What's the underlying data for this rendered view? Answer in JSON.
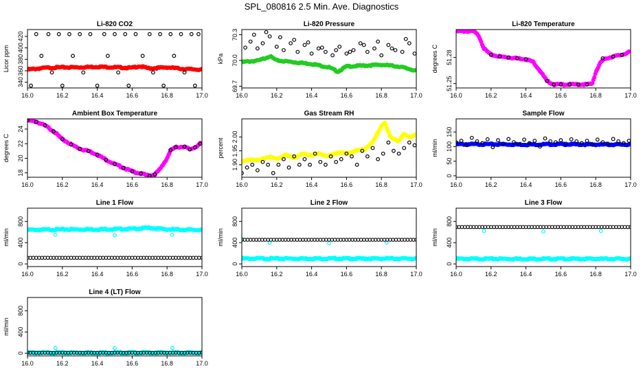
{
  "figure": {
    "title": "SPL_080816  2.5 Min. Ave. Diagnostics"
  },
  "colors": {
    "red": "#ff0000",
    "green": "#22cc22",
    "magenta": "#ff00ff",
    "yellow": "#ffff00",
    "blue": "#0000ff",
    "cyan": "#00ffff",
    "black": "#000000"
  },
  "chart_data": [
    {
      "type": "scatter",
      "title": "Li-820 CO2",
      "xlabel": "",
      "ylabel": "Licor ppm",
      "xlim": [
        16.0,
        17.0
      ],
      "ylim": [
        330,
        432
      ],
      "x_ticks": [
        "16.0",
        "16.2",
        "16.4",
        "16.6",
        "16.8",
        "17.0"
      ],
      "y_ticks": [
        "340",
        "360",
        "380",
        "400",
        "420"
      ],
      "series": [
        {
          "color": "red",
          "style": "dense",
          "x": [
            16.0,
            16.1,
            16.2,
            16.3,
            16.4,
            16.5,
            16.6,
            16.64,
            16.7,
            16.8,
            16.9,
            17.0
          ],
          "y": [
            362,
            365,
            366,
            366,
            367,
            366,
            365,
            368,
            364,
            366,
            363,
            362
          ]
        },
        {
          "color": "black",
          "style": "open",
          "x": [
            16.02,
            16.08,
            16.14,
            16.2,
            16.26,
            16.32,
            16.4,
            16.46,
            16.52,
            16.58,
            16.66,
            16.72,
            16.78,
            16.84,
            16.9,
            16.96,
            16.05,
            16.12,
            16.18,
            16.24,
            16.3,
            16.36,
            16.44,
            16.5,
            16.56,
            16.62,
            16.7,
            16.76,
            16.82,
            16.88,
            16.94,
            16.98
          ],
          "y": [
            334,
            386,
            357,
            334,
            386,
            357,
            334,
            386,
            357,
            334,
            386,
            357,
            334,
            386,
            357,
            334,
            424,
            424,
            424,
            424,
            424,
            424,
            424,
            424,
            424,
            424,
            424,
            424,
            424,
            424,
            424,
            424
          ]
        }
      ]
    },
    {
      "type": "scatter",
      "title": "Li-820 Pressure",
      "xlabel": "",
      "ylabel": "kPa",
      "xlim": [
        16.0,
        17.0
      ],
      "ylim": [
        69.68,
        70.36
      ],
      "x_ticks": [
        "16.0",
        "16.2",
        "16.4",
        "16.6",
        "16.8",
        "17.0"
      ],
      "y_ticks": [
        "69.7",
        "70.0",
        "70.3"
      ],
      "series": [
        {
          "color": "green",
          "style": "dense",
          "x": [
            16.0,
            16.1,
            16.16,
            16.2,
            16.3,
            16.4,
            16.5,
            16.55,
            16.6,
            16.7,
            16.8,
            16.9,
            17.0
          ],
          "y": [
            69.98,
            70.0,
            70.05,
            70.0,
            69.98,
            69.96,
            69.92,
            69.87,
            69.93,
            69.94,
            69.95,
            69.93,
            69.88
          ]
        },
        {
          "color": "black",
          "style": "open",
          "x": [
            16.02,
            16.05,
            16.09,
            16.12,
            16.16,
            16.2,
            16.24,
            16.28,
            16.32,
            16.36,
            16.4,
            16.44,
            16.48,
            16.52,
            16.56,
            16.6,
            16.64,
            16.68,
            16.72,
            16.76,
            16.8,
            16.84,
            16.88,
            16.92,
            16.96,
            16.99,
            16.07,
            16.14,
            16.22,
            16.3,
            16.38,
            16.46,
            16.54,
            16.62,
            16.7,
            16.78,
            16.86,
            16.94
          ],
          "y": [
            70.15,
            70.22,
            70.14,
            70.2,
            70.28,
            70.16,
            70.12,
            70.2,
            70.1,
            70.18,
            70.08,
            70.14,
            70.1,
            70.06,
            70.16,
            70.08,
            70.12,
            70.2,
            70.1,
            70.14,
            70.06,
            70.18,
            70.12,
            70.1,
            70.2,
            70.08,
            70.3,
            70.33,
            70.27,
            70.24,
            70.21,
            70.15,
            70.12,
            70.1,
            70.18,
            70.22,
            70.14,
            70.25
          ]
        }
      ]
    },
    {
      "type": "line",
      "title": "Li-820 Temperature",
      "xlabel": "",
      "ylabel": "degrees C",
      "xlim": [
        16.0,
        17.0
      ],
      "ylim": [
        51.245,
        51.312
      ],
      "x_ticks": [
        "16.0",
        "16.2",
        "16.4",
        "16.6",
        "16.8",
        "17.0"
      ],
      "y_ticks": [
        "51.25",
        "51.28"
      ],
      "series": [
        {
          "color": "magenta",
          "style": "dense",
          "x": [
            16.0,
            16.05,
            16.1,
            16.13,
            16.16,
            16.2,
            16.25,
            16.3,
            16.35,
            16.4,
            16.44,
            16.48,
            16.52,
            16.56,
            16.6,
            16.65,
            16.7,
            16.75,
            16.78,
            16.8,
            16.83,
            16.86,
            16.9,
            16.95,
            16.99
          ],
          "y": [
            51.31,
            51.31,
            51.31,
            51.305,
            51.29,
            51.283,
            51.281,
            51.28,
            51.279,
            51.278,
            51.275,
            51.265,
            51.253,
            51.249,
            51.249,
            51.249,
            51.249,
            51.249,
            51.25,
            51.263,
            51.275,
            51.279,
            51.281,
            51.283,
            51.286
          ]
        },
        {
          "color": "black",
          "style": "open",
          "x": [
            16.2,
            16.25,
            16.3,
            16.35,
            16.4,
            16.52,
            16.56,
            16.6,
            16.65,
            16.7,
            16.75,
            16.84,
            16.9,
            16.95
          ],
          "y": [
            51.283,
            51.281,
            51.28,
            51.279,
            51.278,
            51.253,
            51.249,
            51.249,
            51.249,
            51.249,
            51.249,
            51.279,
            51.281,
            51.283
          ]
        }
      ]
    },
    {
      "type": "line",
      "title": "Ambient Box Temperature",
      "xlabel": "",
      "ylabel": "degrees C",
      "xlim": [
        16.0,
        17.0
      ],
      "ylim": [
        17.4,
        25.4
      ],
      "x_ticks": [
        "16.0",
        "16.2",
        "16.4",
        "16.6",
        "16.8",
        "17.0"
      ],
      "y_ticks": [
        "18",
        "20",
        "22",
        "24"
      ],
      "series": [
        {
          "color": "magenta",
          "style": "dense",
          "x": [
            16.0,
            16.05,
            16.1,
            16.15,
            16.2,
            16.25,
            16.3,
            16.35,
            16.4,
            16.45,
            16.5,
            16.55,
            16.6,
            16.65,
            16.7,
            16.73,
            16.76,
            16.8,
            16.82,
            16.85,
            16.9,
            16.93,
            16.96,
            16.99
          ],
          "y": [
            25.2,
            25.0,
            24.5,
            23.7,
            22.6,
            21.9,
            21.3,
            21.0,
            20.5,
            19.8,
            19.2,
            18.7,
            18.2,
            17.9,
            17.6,
            17.8,
            18.5,
            20.0,
            21.1,
            21.5,
            21.6,
            21.2,
            21.5,
            22.0
          ]
        },
        {
          "color": "black",
          "style": "open",
          "x": [
            16.0,
            16.05,
            16.1,
            16.15,
            16.2,
            16.25,
            16.3,
            16.35,
            16.4,
            16.45,
            16.5,
            16.55,
            16.6,
            16.65,
            16.7,
            16.73,
            16.82,
            16.85,
            16.9,
            16.93,
            16.96,
            16.99
          ],
          "y": [
            25.2,
            25.0,
            24.5,
            23.7,
            22.6,
            21.9,
            21.3,
            21.0,
            20.5,
            19.8,
            19.2,
            18.7,
            18.2,
            17.9,
            17.6,
            17.8,
            21.1,
            21.5,
            21.6,
            21.2,
            21.5,
            22.0
          ]
        }
      ]
    },
    {
      "type": "scatter",
      "title": "Gas Stream RH",
      "xlabel": "",
      "ylabel": "percent",
      "xlim": [
        16.0,
        17.0
      ],
      "ylim": [
        1.855,
        2.065
      ],
      "x_ticks": [
        "16.0",
        "16.2",
        "16.4",
        "16.6",
        "16.8",
        "17.0"
      ],
      "y_ticks": [
        "1.90",
        "1.95",
        "2.00"
      ],
      "series": [
        {
          "color": "yellow",
          "style": "dense",
          "x": [
            16.0,
            16.05,
            16.1,
            16.15,
            16.2,
            16.25,
            16.3,
            16.35,
            16.4,
            16.45,
            16.5,
            16.55,
            16.6,
            16.65,
            16.7,
            16.75,
            16.8,
            16.82,
            16.85,
            16.9,
            16.93,
            16.96,
            16.99
          ],
          "y": [
            1.91,
            1.92,
            1.915,
            1.93,
            1.92,
            1.935,
            1.925,
            1.94,
            1.935,
            1.94,
            1.93,
            1.945,
            1.94,
            1.95,
            1.955,
            1.98,
            2.04,
            2.05,
            2.0,
            1.985,
            2.01,
            2.0,
            2.005
          ]
        },
        {
          "color": "black",
          "style": "open",
          "x": [
            16.0,
            16.03,
            16.06,
            16.09,
            16.12,
            16.15,
            16.18,
            16.21,
            16.24,
            16.27,
            16.3,
            16.33,
            16.36,
            16.39,
            16.42,
            16.45,
            16.48,
            16.51,
            16.54,
            16.57,
            16.6,
            16.63,
            16.66,
            16.69,
            16.72,
            16.75,
            16.78,
            16.81,
            16.84,
            16.87,
            16.9,
            16.93,
            16.96,
            16.99
          ],
          "y": [
            1.87,
            1.89,
            1.9,
            1.88,
            1.91,
            1.9,
            1.87,
            1.9,
            1.92,
            1.89,
            1.93,
            1.9,
            1.92,
            1.9,
            1.94,
            1.91,
            1.9,
            1.93,
            1.91,
            1.92,
            1.94,
            1.93,
            1.9,
            1.95,
            1.93,
            1.96,
            1.92,
            1.94,
            1.98,
            1.95,
            1.94,
            1.96,
            1.98,
            1.97
          ]
        }
      ]
    },
    {
      "type": "scatter",
      "title": "Sample Flow",
      "xlabel": "",
      "ylabel": "ml/min",
      "xlim": [
        16.0,
        17.0
      ],
      "ylim": [
        -5,
        195
      ],
      "x_ticks": [
        "16.0",
        "16.2",
        "16.4",
        "16.6",
        "16.8",
        "17.0"
      ],
      "y_ticks": [
        "0",
        "50",
        "100",
        "150"
      ],
      "series": [
        {
          "color": "blue",
          "style": "dense",
          "x": [
            16.0,
            16.2,
            16.4,
            16.6,
            16.8,
            17.0
          ],
          "y": [
            108,
            108,
            107,
            108,
            107,
            107
          ]
        },
        {
          "color": "black",
          "style": "open",
          "x": [
            16.0,
            16.03,
            16.06,
            16.09,
            16.12,
            16.15,
            16.18,
            16.21,
            16.24,
            16.27,
            16.3,
            16.33,
            16.36,
            16.39,
            16.42,
            16.45,
            16.48,
            16.51,
            16.54,
            16.57,
            16.6,
            16.63,
            16.66,
            16.69,
            16.72,
            16.75,
            16.78,
            16.81,
            16.84,
            16.87,
            16.9,
            16.93,
            16.96,
            16.99
          ],
          "y": [
            115,
            120,
            105,
            130,
            118,
            112,
            125,
            98,
            122,
            110,
            126,
            115,
            108,
            124,
            112,
            120,
            100,
            128,
            118,
            115,
            122,
            110,
            125,
            118,
            112,
            120,
            108,
            124,
            115,
            110,
            126,
            118,
            112,
            120
          ]
        }
      ]
    },
    {
      "type": "scatter",
      "title": "Line 1 Flow",
      "xlabel": "",
      "ylabel": "ml/min",
      "xlim": [
        16.0,
        17.0
      ],
      "ylim": [
        -50,
        1050
      ],
      "x_ticks": [
        "16.0",
        "16.2",
        "16.4",
        "16.6",
        "16.8",
        "17.0"
      ],
      "y_ticks": [
        "0",
        "400",
        "800"
      ],
      "series": [
        {
          "color": "cyan",
          "style": "dense",
          "x": [
            16.0,
            16.2,
            16.4,
            16.6,
            16.7,
            16.8,
            17.0
          ],
          "y": [
            640,
            650,
            650,
            660,
            680,
            650,
            640
          ]
        },
        {
          "color": "cyan",
          "style": "open",
          "x": [
            16.16,
            16.5,
            16.83
          ],
          "y": [
            550,
            540,
            550
          ]
        },
        {
          "color": "black",
          "style": "dense-open",
          "x": [
            16.0,
            17.0
          ],
          "y": [
            115,
            115
          ]
        }
      ]
    },
    {
      "type": "scatter",
      "title": "Line 2 Flow",
      "xlabel": "",
      "ylabel": "ml/min",
      "xlim": [
        16.0,
        17.0
      ],
      "ylim": [
        -50,
        1050
      ],
      "x_ticks": [
        "16.0",
        "16.2",
        "16.4",
        "16.6",
        "16.8",
        "17.0"
      ],
      "y_ticks": [
        "0",
        "400",
        "800"
      ],
      "series": [
        {
          "color": "cyan",
          "style": "dense",
          "x": [
            16.0,
            17.0
          ],
          "y": [
            100,
            100
          ]
        },
        {
          "color": "cyan",
          "style": "open",
          "x": [
            16.0,
            16.16,
            16.5,
            16.83
          ],
          "y": [
            470,
            400,
            390,
            400
          ]
        },
        {
          "color": "black",
          "style": "dense-open",
          "x": [
            16.0,
            17.0
          ],
          "y": [
            455,
            455
          ]
        }
      ]
    },
    {
      "type": "scatter",
      "title": "Line 3 Flow",
      "xlabel": "",
      "ylabel": "ml/min",
      "xlim": [
        16.0,
        17.0
      ],
      "ylim": [
        -50,
        1050
      ],
      "x_ticks": [
        "16.0",
        "16.2",
        "16.4",
        "16.6",
        "16.8",
        "17.0"
      ],
      "y_ticks": [
        "0",
        "400",
        "800"
      ],
      "series": [
        {
          "color": "cyan",
          "style": "dense",
          "x": [
            16.0,
            17.0
          ],
          "y": [
            95,
            95
          ]
        },
        {
          "color": "cyan",
          "style": "open",
          "x": [
            16.0,
            16.16,
            16.5,
            16.83
          ],
          "y": [
            690,
            620,
            610,
            620
          ]
        },
        {
          "color": "black",
          "style": "dense-open",
          "x": [
            16.0,
            17.0
          ],
          "y": [
            695,
            695
          ]
        }
      ]
    },
    {
      "type": "scatter",
      "title": "Line 4 (LT) Flow",
      "xlabel": "",
      "ylabel": "ml/min",
      "xlim": [
        16.0,
        17.0
      ],
      "ylim": [
        -50,
        1050
      ],
      "x_ticks": [
        "16.0",
        "16.2",
        "16.4",
        "16.6",
        "16.8",
        "17.0"
      ],
      "y_ticks": [
        "0",
        "400",
        "800"
      ],
      "series": [
        {
          "color": "cyan",
          "style": "dense",
          "x": [
            16.0,
            17.0
          ],
          "y": [
            10,
            10
          ]
        },
        {
          "color": "cyan",
          "style": "open",
          "x": [
            16.16,
            16.5,
            16.83
          ],
          "y": [
            100,
            95,
            100
          ]
        },
        {
          "color": "black",
          "style": "dense-open",
          "x": [
            16.0,
            17.0
          ],
          "y": [
            8,
            8
          ]
        }
      ]
    }
  ]
}
